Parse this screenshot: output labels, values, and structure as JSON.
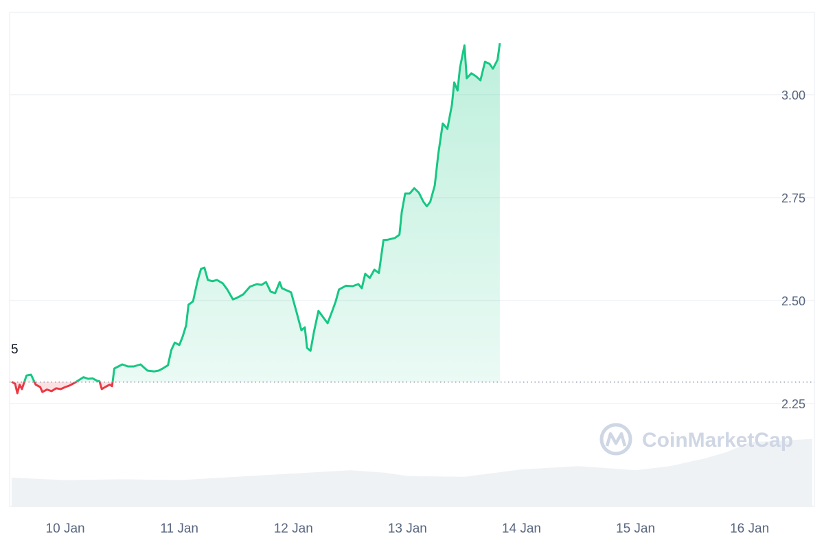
{
  "chart_data": {
    "type": "area",
    "title": "",
    "xlabel": "",
    "ylabel": "",
    "ylim": [
      2.0,
      3.2
    ],
    "y_ticks": [
      2.25,
      2.5,
      2.75,
      3.0
    ],
    "y_tick_labels": [
      "2.25",
      "2.50",
      "2.75",
      "3.00"
    ],
    "x_tick_labels": [
      "10 Jan",
      "11 Jan",
      "12 Jan",
      "13 Jan",
      "14 Jan",
      "15 Jan",
      "16 Jan"
    ],
    "x_tick_positions": [
      10,
      11,
      12,
      13,
      14,
      15,
      16
    ],
    "xlim": [
      9.53,
      16.55
    ],
    "baseline": 2.302,
    "baseline_cut_label": "5",
    "colors": {
      "up": "#16c784",
      "down": "#ea3943",
      "grid": "#eff2f5",
      "volume": "#eff2f5"
    },
    "grid": true,
    "watermark": "CoinMarketCap",
    "series": [
      {
        "values": [
          [
            9.53,
            2.303
          ],
          [
            9.56,
            2.298
          ],
          [
            9.58,
            2.275
          ],
          [
            9.6,
            2.296
          ],
          [
            9.62,
            2.285
          ],
          [
            9.66,
            2.318
          ],
          [
            9.7,
            2.32
          ],
          [
            9.74,
            2.296
          ],
          [
            9.78,
            2.29
          ],
          [
            9.8,
            2.278
          ],
          [
            9.84,
            2.284
          ],
          [
            9.88,
            2.28
          ],
          [
            9.92,
            2.287
          ],
          [
            9.96,
            2.285
          ],
          [
            10.0,
            2.29
          ],
          [
            10.04,
            2.294
          ],
          [
            10.08,
            2.3
          ],
          [
            10.12,
            2.307
          ],
          [
            10.16,
            2.314
          ],
          [
            10.2,
            2.31
          ],
          [
            10.24,
            2.311
          ],
          [
            10.28,
            2.305
          ],
          [
            10.3,
            2.304
          ],
          [
            10.32,
            2.285
          ],
          [
            10.35,
            2.29
          ],
          [
            10.39,
            2.296
          ],
          [
            10.41,
            2.292
          ],
          [
            10.43,
            2.335
          ],
          [
            10.5,
            2.345
          ],
          [
            10.55,
            2.34
          ],
          [
            10.6,
            2.34
          ],
          [
            10.66,
            2.345
          ],
          [
            10.72,
            2.33
          ],
          [
            10.78,
            2.328
          ],
          [
            10.82,
            2.33
          ],
          [
            10.86,
            2.336
          ],
          [
            10.9,
            2.343
          ],
          [
            10.93,
            2.38
          ],
          [
            10.96,
            2.398
          ],
          [
            11.0,
            2.392
          ],
          [
            11.03,
            2.413
          ],
          [
            11.06,
            2.44
          ],
          [
            11.08,
            2.49
          ],
          [
            11.12,
            2.498
          ],
          [
            11.16,
            2.548
          ],
          [
            11.19,
            2.577
          ],
          [
            11.22,
            2.58
          ],
          [
            11.25,
            2.55
          ],
          [
            11.29,
            2.547
          ],
          [
            11.33,
            2.55
          ],
          [
            11.38,
            2.542
          ],
          [
            11.42,
            2.527
          ],
          [
            11.47,
            2.503
          ],
          [
            11.5,
            2.506
          ],
          [
            11.56,
            2.515
          ],
          [
            11.62,
            2.534
          ],
          [
            11.68,
            2.54
          ],
          [
            11.72,
            2.538
          ],
          [
            11.76,
            2.545
          ],
          [
            11.8,
            2.522
          ],
          [
            11.84,
            2.518
          ],
          [
            11.88,
            2.545
          ],
          [
            11.9,
            2.53
          ],
          [
            11.94,
            2.525
          ],
          [
            11.98,
            2.52
          ],
          [
            12.03,
            2.47
          ],
          [
            12.07,
            2.428
          ],
          [
            12.1,
            2.435
          ],
          [
            12.12,
            2.385
          ],
          [
            12.15,
            2.378
          ],
          [
            12.18,
            2.424
          ],
          [
            12.22,
            2.475
          ],
          [
            12.26,
            2.46
          ],
          [
            12.3,
            2.445
          ],
          [
            12.34,
            2.474
          ],
          [
            12.37,
            2.497
          ],
          [
            12.4,
            2.527
          ],
          [
            12.46,
            2.536
          ],
          [
            12.52,
            2.535
          ],
          [
            12.57,
            2.54
          ],
          [
            12.6,
            2.53
          ],
          [
            12.63,
            2.565
          ],
          [
            12.67,
            2.555
          ],
          [
            12.71,
            2.575
          ],
          [
            12.75,
            2.567
          ],
          [
            12.79,
            2.647
          ],
          [
            12.83,
            2.648
          ],
          [
            12.89,
            2.652
          ],
          [
            12.93,
            2.66
          ],
          [
            12.95,
            2.715
          ],
          [
            12.98,
            2.76
          ],
          [
            13.02,
            2.76
          ],
          [
            13.06,
            2.773
          ],
          [
            13.1,
            2.762
          ],
          [
            13.14,
            2.74
          ],
          [
            13.17,
            2.729
          ],
          [
            13.2,
            2.74
          ],
          [
            13.24,
            2.78
          ],
          [
            13.27,
            2.855
          ],
          [
            13.31,
            2.93
          ],
          [
            13.35,
            2.917
          ],
          [
            13.39,
            2.975
          ],
          [
            13.41,
            3.03
          ],
          [
            13.44,
            3.01
          ],
          [
            13.46,
            3.065
          ],
          [
            13.5,
            3.12
          ],
          [
            13.52,
            3.04
          ],
          [
            13.56,
            3.052
          ],
          [
            13.6,
            3.045
          ],
          [
            13.64,
            3.035
          ],
          [
            13.68,
            3.08
          ],
          [
            13.72,
            3.075
          ],
          [
            13.75,
            3.063
          ],
          [
            13.79,
            3.085
          ],
          [
            13.81,
            3.125
          ]
        ]
      }
    ],
    "volume": [
      [
        9.53,
        0.35
      ],
      [
        10.0,
        0.32
      ],
      [
        10.5,
        0.33
      ],
      [
        11.0,
        0.32
      ],
      [
        11.5,
        0.36
      ],
      [
        12.0,
        0.4
      ],
      [
        12.5,
        0.44
      ],
      [
        12.8,
        0.41
      ],
      [
        13.0,
        0.37
      ],
      [
        13.5,
        0.36
      ],
      [
        14.0,
        0.45
      ],
      [
        14.5,
        0.49
      ],
      [
        14.7,
        0.47
      ],
      [
        15.0,
        0.44
      ],
      [
        15.3,
        0.49
      ],
      [
        15.6,
        0.58
      ],
      [
        15.8,
        0.66
      ],
      [
        16.0,
        0.78
      ],
      [
        16.3,
        0.8
      ],
      [
        16.55,
        0.82
      ]
    ]
  }
}
